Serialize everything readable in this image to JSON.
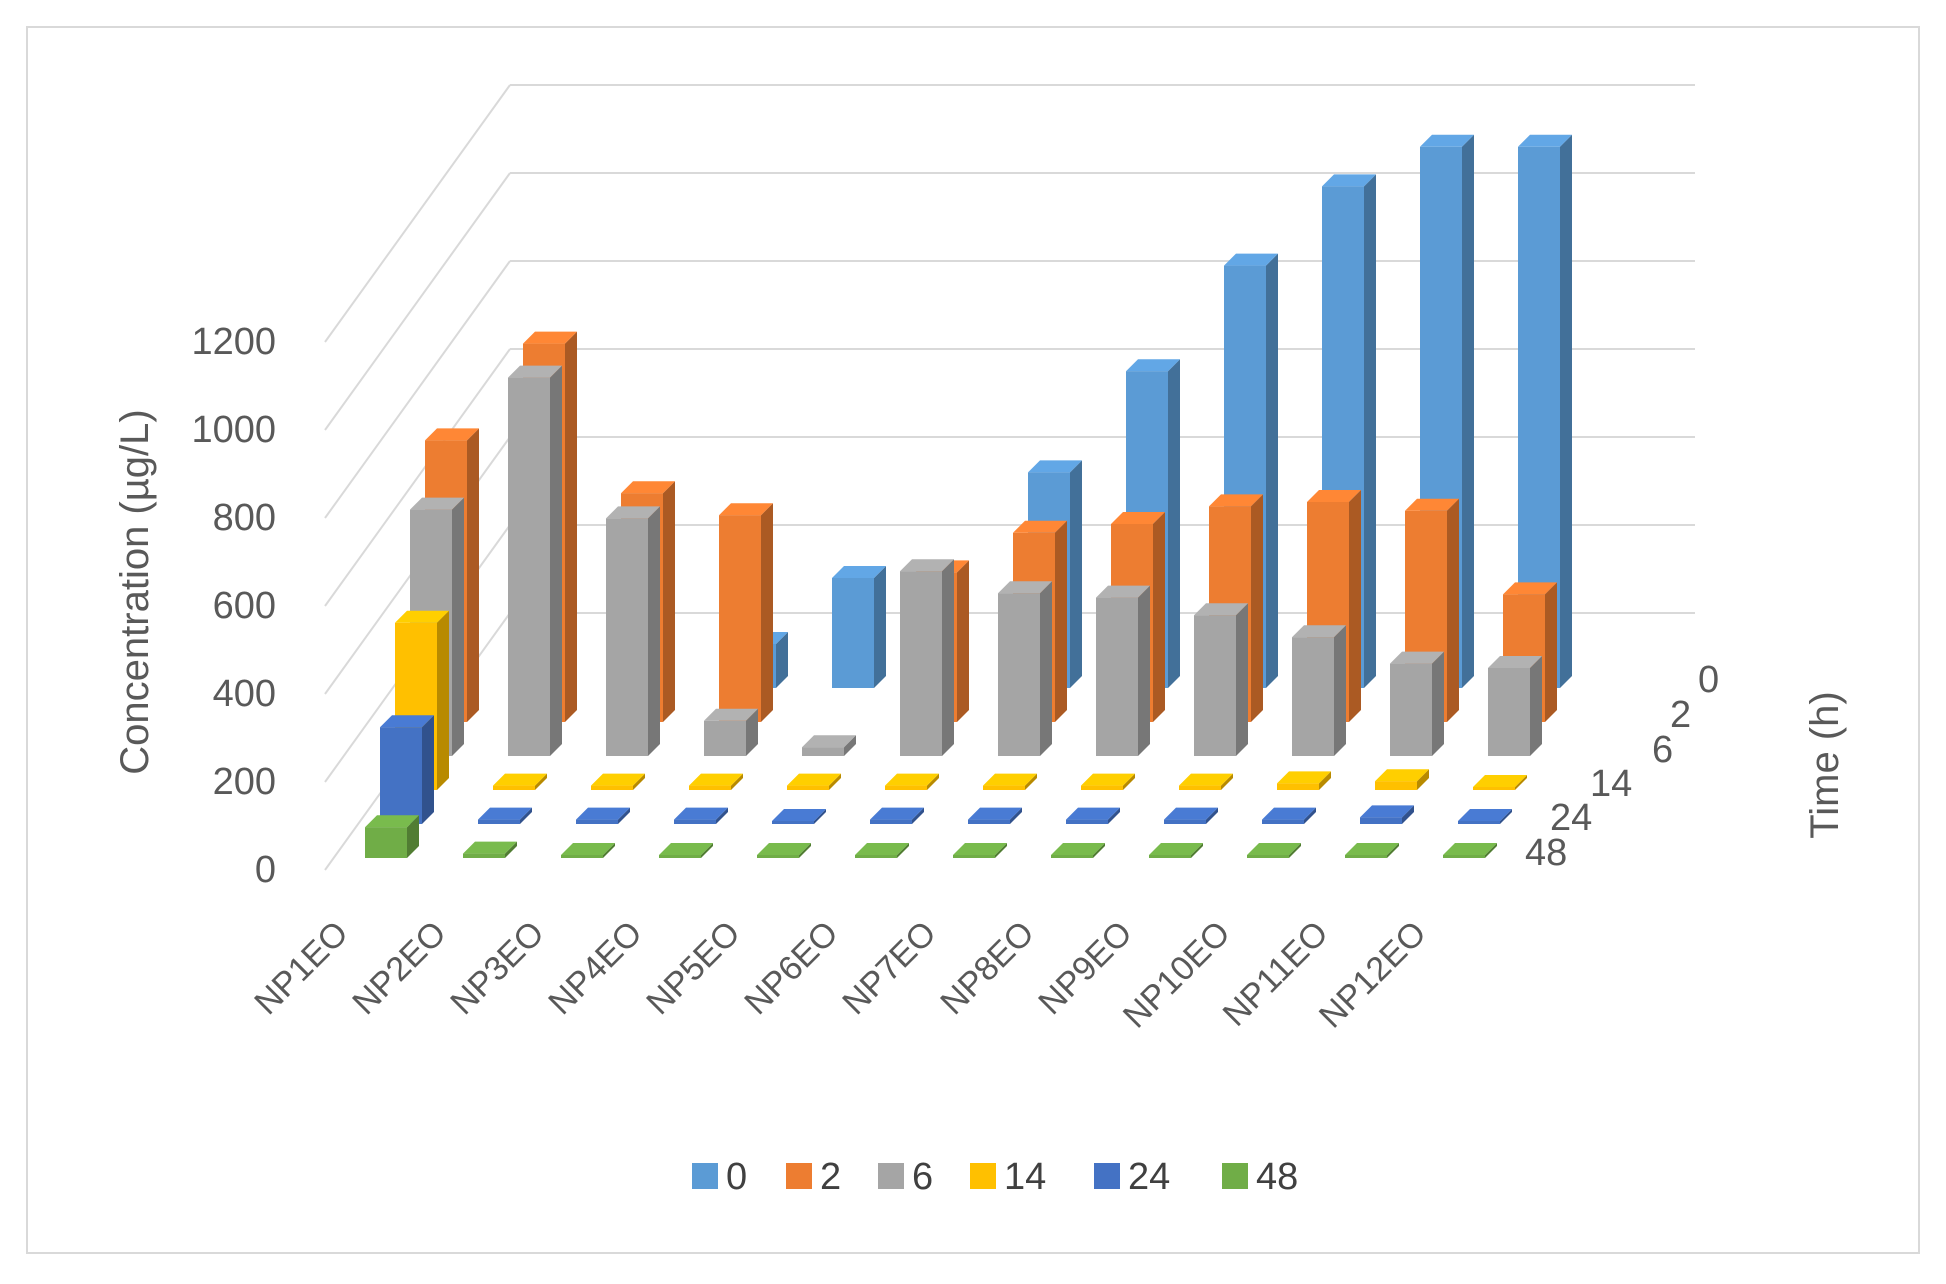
{
  "chart_data": {
    "type": "bar",
    "subtype": "3d-column",
    "title": "",
    "ylabel": "Concentration (µg/L)",
    "depth_axis_label": "Time (h)",
    "xlabel": "",
    "ylim": [
      0,
      1200
    ],
    "y_ticks": [
      "0",
      "200",
      "400",
      "600",
      "800",
      "1000",
      "1200"
    ],
    "categories": [
      "NP1EO",
      "NP2EO",
      "NP3EO",
      "NP4EO",
      "NP5EO",
      "NP6EO",
      "NP7EO",
      "NP8EO",
      "NP9EO",
      "NP10EO",
      "NP11EO",
      "NP12EO"
    ],
    "grid": true,
    "legend_position": "bottom",
    "series": [
      {
        "name": "0",
        "color": "#5b9bd5",
        "values": [
          0,
          0,
          0,
          100,
          250,
          0,
          490,
          720,
          960,
          1140,
          1230,
          1230
        ]
      },
      {
        "name": "2",
        "color": "#ed7d31",
        "values": [
          640,
          860,
          520,
          470,
          0,
          340,
          430,
          450,
          490,
          500,
          480,
          290
        ]
      },
      {
        "name": "6",
        "color": "#a5a5a5",
        "values": [
          560,
          860,
          540,
          80,
          20,
          420,
          370,
          360,
          320,
          270,
          210,
          200
        ]
      },
      {
        "name": "14",
        "color": "#ffc000",
        "values": [
          380,
          10,
          10,
          10,
          10,
          10,
          10,
          10,
          10,
          15,
          20,
          5
        ]
      },
      {
        "name": "24",
        "color": "#4472c4",
        "values": [
          220,
          10,
          10,
          10,
          5,
          10,
          10,
          10,
          10,
          10,
          15,
          5
        ]
      },
      {
        "name": "48",
        "color": "#70ad47",
        "values": [
          70,
          10,
          5,
          5,
          3,
          5,
          5,
          5,
          5,
          5,
          5,
          3
        ]
      }
    ]
  }
}
